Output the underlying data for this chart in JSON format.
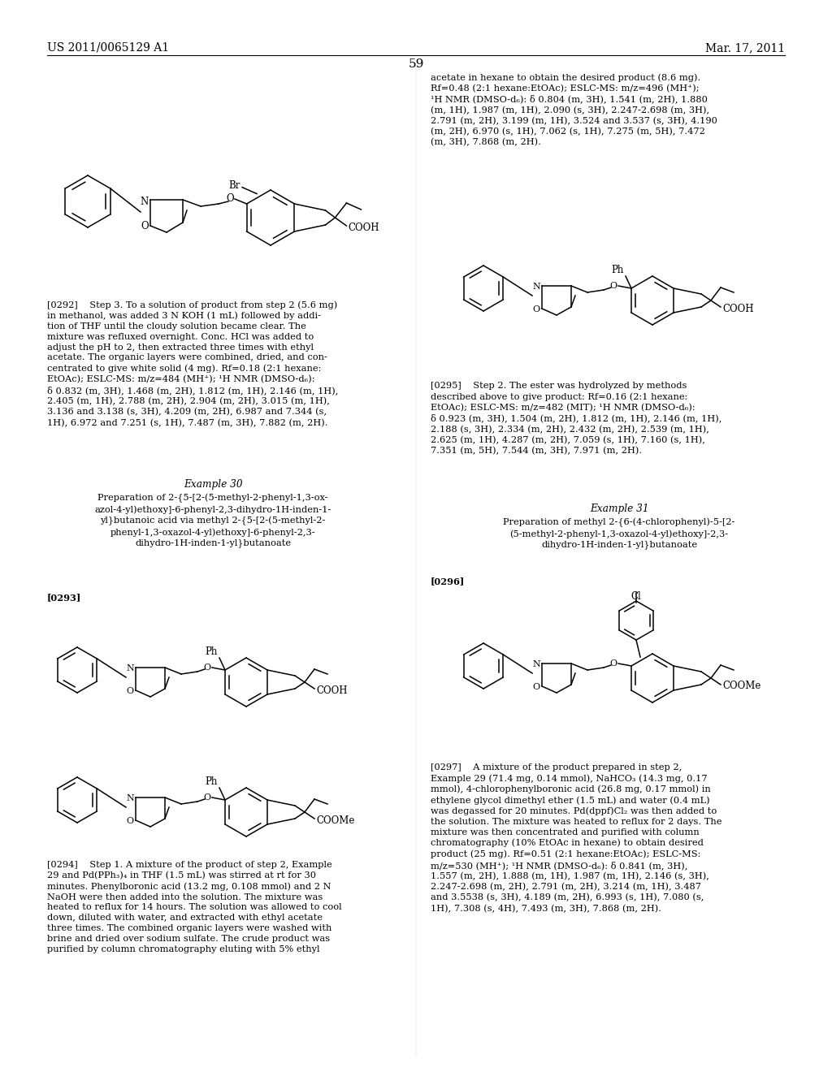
{
  "page_num": "59",
  "patent_num": "US 2011/0065129 A1",
  "patent_date": "Mar. 17, 2011",
  "background": "#ffffff",
  "text_color": "#000000",
  "p292": "[0292]    Step 3. To a solution of product from step 2 (5.6 mg)\nin methanol, was added 3 N KOH (1 mL) followed by addi-\ntion of THF until the cloudy solution became clear. The\nmixture was refluxed overnight. Conc. HCl was added to\nadjust the pH to 2, then extracted three times with ethyl\nacetate. The organic layers were combined, dried, and con-\ncentrated to give white solid (4 mg). Rf=0.18 (2:1 hexane:\nEtOAc); ESLC-MS: m/z=484 (MH⁺); ¹H NMR (DMSO-d₆):\nδ 0.832 (m, 3H), 1.468 (m, 2H), 1.812 (m, 1H), 2.146 (m, 1H),\n2.405 (m, 1H), 2.788 (m, 2H), 2.904 (m, 2H), 3.015 (m, 1H),\n3.136 and 3.138 (s, 3H), 4.209 (m, 2H), 6.987 and 7.344 (s,\n1H), 6.972 and 7.251 (s, 1H), 7.487 (m, 3H), 7.882 (m, 2H).",
  "p294": "[0294]    Step 1. A mixture of the product of step 2, Example\n29 and Pd(PPh₃)₄ in THF (1.5 mL) was stirred at rt for 30\nminutes. Phenylboronic acid (13.2 mg, 0.108 mmol) and 2 N\nNaOH were then added into the solution. The mixture was\nheated to reflux for 14 hours. The solution was allowed to cool\ndown, diluted with water, and extracted with ethyl acetate\nthree times. The combined organic layers were washed with\nbrine and dried over sodium sulfate. The crude product was\npurified by column chromatography eluting with 5% ethyl",
  "right_top": "acetate in hexane to obtain the desired product (8.6 mg).\nRf=0.48 (2:1 hexane:EtOAc); ESLC-MS: m/z=496 (MH⁺);\n¹H NMR (DMSO-d₆): δ 0.804 (m, 3H), 1.541 (m, 2H), 1.880\n(m, 1H), 1.987 (m, 1H), 2.090 (s, 3H), 2.247-2.698 (m, 3H),\n2.791 (m, 2H), 3.199 (m, 1H), 3.524 and 3.537 (s, 3H), 4.190\n(m, 2H), 6.970 (s, 1H), 7.062 (s, 1H), 7.275 (m, 5H), 7.472\n(m, 3H), 7.868 (m, 2H).",
  "p295": "[0295]    Step 2. The ester was hydrolyzed by methods\ndescribed above to give product: Rf=0.16 (2:1 hexane:\nEtOAc); ESLC-MS: m/z=482 (MIT); ¹H NMR (DMSO-d₆):\nδ 0.923 (m, 3H), 1.504 (m, 2H), 1.812 (m, 1H), 2.146 (m, 1H),\n2.188 (s, 3H), 2.334 (m, 2H), 2.432 (m, 2H), 2.539 (m, 1H),\n2.625 (m, 1H), 4.287 (m, 2H), 7.059 (s, 1H), 7.160 (s, 1H),\n7.351 (m, 5H), 7.544 (m, 3H), 7.971 (m, 2H).",
  "ex30_title": "Example 30",
  "ex30_prep": "Preparation of 2-{5-[2-(5-methyl-2-phenyl-1,3-ox-\nazol-4-yl)ethoxy]-6-phenyl-2,3-dihydro-1H-inden-1-\nyl}butanoic acid via methyl 2-{5-[2-(5-methyl-2-\nphenyl-1,3-oxazol-4-yl)ethoxy]-6-phenyl-2,3-\ndihydro-1H-inden-1-yl}butanoate",
  "ex31_title": "Example 31",
  "ex31_prep": "Preparation of methyl 2-{6-(4-chlorophenyl)-5-[2-\n(5-methyl-2-phenyl-1,3-oxazol-4-yl)ethoxy]-2,3-\ndihydro-1H-inden-1-yl}butanoate",
  "p297": "[0297]    A mixture of the product prepared in step 2,\nExample 29 (71.4 mg, 0.14 mmol), NaHCO₃ (14.3 mg, 0.17\nmmol), 4-chlorophenylboronic acid (26.8 mg, 0.17 mmol) in\nethylene glycol dimethyl ether (1.5 mL) and water (0.4 mL)\nwas degassed for 20 minutes. Pd(dppf)Cl₂ was then added to\nthe solution. The mixture was heated to reflux for 2 days. The\nmixture was then concentrated and purified with column\nchromatography (10% EtOAc in hexane) to obtain desired\nproduct (25 mg). Rf=0.51 (2:1 hexane:EtOAc); ESLC-MS:\nm/z=530 (MH⁺); ¹H NMR (DMSO-d₆): δ 0.841 (m, 3H),\n1.557 (m, 2H), 1.888 (m, 1H), 1.987 (m, 1H), 2.146 (s, 3H),\n2.247-2.698 (m, 2H), 2.791 (m, 2H), 3.214 (m, 1H), 3.487\nand 3.5538 (s, 3H), 4.189 (m, 2H), 6.993 (s, 1H), 7.080 (s,\n1H), 7.308 (s, 4H), 7.493 (m, 3H), 7.868 (m, 2H)."
}
